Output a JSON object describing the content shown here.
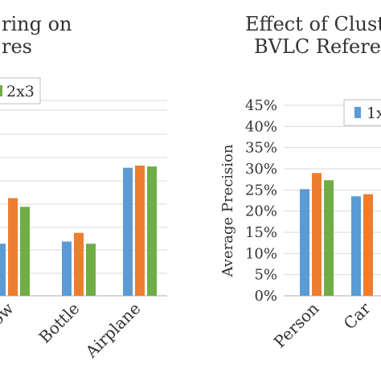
{
  "colors": {
    "series1": "#5B9BD5",
    "series2": "#ED7D31",
    "series3": "#70AD47",
    "grid": "#D9D9D9",
    "axis": "#BFBFBF",
    "text": "#333333"
  },
  "chart_data": [
    {
      "type": "bar",
      "title_lines": [
        "ring on",
        "res"
      ],
      "categories": [
        "Cow",
        "Bottle",
        "Airplane"
      ],
      "series": [
        {
          "values": [
            0.12,
            0.125,
            0.295
          ]
        },
        {
          "values": [
            0.225,
            0.145,
            0.3
          ]
        },
        {
          "values": [
            0.205,
            0.12,
            0.298
          ]
        }
      ],
      "legend": [
        "2x3"
      ],
      "legend_position": "top-right",
      "grid": true
    },
    {
      "type": "bar",
      "title_lines": [
        "Effect of Clust",
        "BVLC Refere"
      ],
      "ylabel": "Average Precision",
      "ylim": [
        0,
        45
      ],
      "yticks": [
        "0%",
        "5%",
        "10%",
        "15%",
        "20%",
        "25%",
        "30%",
        "35%",
        "40%",
        "45%"
      ],
      "categories": [
        "Person",
        "Car"
      ],
      "series": [
        {
          "values": [
            25.2,
            23.5
          ]
        },
        {
          "values": [
            29.0,
            24.0
          ]
        },
        {
          "values": [
            27.3,
            null
          ]
        }
      ],
      "legend": [
        "1x"
      ],
      "legend_position": "top-right",
      "grid": true
    }
  ]
}
